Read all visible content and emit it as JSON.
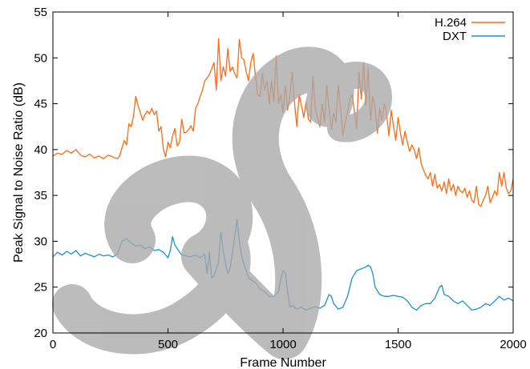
{
  "chart_data": {
    "type": "line",
    "xlabel": "Frame Number",
    "ylabel": "Peak Signal to Noise Ratio (dB)",
    "xlim": [
      0,
      2000
    ],
    "ylim": [
      20,
      55
    ],
    "xticks": [
      0,
      500,
      1000,
      1500,
      2000
    ],
    "yticks": [
      20,
      25,
      30,
      35,
      40,
      45,
      50,
      55
    ],
    "grid": false,
    "legend_position": "top-right",
    "series": [
      {
        "name": "H.264",
        "color": "#ff6a13",
        "x": [
          0,
          20,
          40,
          60,
          80,
          100,
          120,
          140,
          160,
          180,
          200,
          220,
          240,
          260,
          280,
          290,
          300,
          310,
          320,
          330,
          340,
          350,
          360,
          370,
          380,
          390,
          400,
          410,
          420,
          430,
          440,
          450,
          460,
          470,
          480,
          490,
          500,
          510,
          520,
          530,
          540,
          550,
          560,
          570,
          580,
          590,
          600,
          610,
          620,
          630,
          640,
          650,
          660,
          670,
          680,
          690,
          700,
          710,
          720,
          730,
          740,
          750,
          760,
          770,
          780,
          790,
          800,
          810,
          820,
          830,
          840,
          850,
          860,
          870,
          880,
          890,
          900,
          910,
          920,
          930,
          940,
          950,
          960,
          970,
          980,
          990,
          1000,
          1010,
          1020,
          1030,
          1040,
          1050,
          1060,
          1070,
          1080,
          1090,
          1100,
          1110,
          1120,
          1130,
          1140,
          1150,
          1160,
          1170,
          1180,
          1190,
          1200,
          1210,
          1220,
          1230,
          1240,
          1250,
          1260,
          1270,
          1280,
          1290,
          1300,
          1310,
          1320,
          1330,
          1340,
          1350,
          1360,
          1370,
          1380,
          1390,
          1400,
          1410,
          1420,
          1430,
          1440,
          1450,
          1460,
          1470,
          1480,
          1490,
          1500,
          1510,
          1520,
          1530,
          1540,
          1550,
          1560,
          1570,
          1580,
          1590,
          1600,
          1610,
          1620,
          1630,
          1640,
          1650,
          1660,
          1670,
          1680,
          1690,
          1700,
          1710,
          1720,
          1730,
          1740,
          1750,
          1760,
          1770,
          1780,
          1790,
          1800,
          1810,
          1820,
          1830,
          1840,
          1850,
          1860,
          1870,
          1880,
          1890,
          1900,
          1910,
          1920,
          1930,
          1940,
          1950,
          1960,
          1970,
          1980,
          1990,
          2000
        ],
        "values": [
          39.3,
          39.6,
          39.5,
          39.9,
          39.6,
          40.0,
          39.4,
          39.2,
          39.5,
          39.1,
          39.3,
          39.0,
          39.4,
          39.2,
          39.0,
          39.3,
          40.2,
          41.0,
          40.5,
          42.8,
          42.5,
          43.6,
          45.8,
          44.8,
          44.0,
          43.2,
          43.8,
          44.2,
          43.9,
          44.5,
          43.8,
          44.2,
          42.0,
          42.5,
          40.0,
          39.2,
          40.8,
          40.2,
          41.5,
          42.3,
          40.4,
          40.8,
          43.3,
          41.8,
          41.9,
          42.2,
          42.6,
          42.0,
          44.5,
          45.0,
          45.8,
          46.5,
          47.5,
          47.8,
          48.2,
          48.8,
          49.5,
          46.5,
          52.1,
          47.5,
          49.0,
          48.0,
          51.0,
          48.5,
          49.0,
          48.3,
          47.8,
          52.0,
          50.0,
          49.8,
          48.5,
          47.5,
          49.5,
          50.5,
          48.0,
          46.0,
          45.8,
          48.3,
          46.5,
          47.5,
          45.0,
          47.5,
          45.2,
          50.2,
          45.0,
          46.0,
          44.0,
          47.0,
          44.3,
          45.8,
          48.5,
          45.0,
          42.5,
          46.0,
          44.8,
          43.5,
          45.2,
          43.3,
          43.0,
          48.0,
          44.5,
          43.5,
          42.5,
          45.0,
          43.0,
          47.0,
          44.5,
          42.2,
          44.0,
          43.0,
          47.0,
          44.5,
          41.5,
          43.0,
          44.0,
          45.5,
          46.0,
          44.2,
          42.3,
          48.5,
          45.5,
          49.5,
          44.8,
          48.8,
          43.2,
          45.8,
          44.5,
          41.8,
          44.5,
          43.2,
          45.0,
          44.0,
          41.5,
          44.3,
          42.5,
          41.0,
          43.5,
          41.8,
          40.5,
          42.0,
          40.8,
          39.8,
          40.5,
          40.0,
          39.0,
          40.2,
          38.5,
          37.8,
          37.2,
          36.8,
          37.5,
          36.0,
          37.3,
          35.8,
          36.2,
          35.5,
          36.5,
          35.2,
          36.8,
          35.5,
          36.2,
          35.0,
          36.0,
          35.5,
          35.3,
          35.8,
          34.8,
          35.5,
          34.5,
          34.2,
          36.0,
          34.0,
          33.8,
          34.5,
          35.0,
          36.0,
          34.2,
          34.8,
          35.5,
          35.0,
          37.5,
          36.0,
          37.5,
          35.8,
          35.2,
          35.5,
          36.8
        ]
      },
      {
        "name": "DXT",
        "color": "#1f91d0",
        "x": [
          0,
          20,
          40,
          60,
          80,
          100,
          120,
          140,
          160,
          180,
          200,
          220,
          240,
          260,
          280,
          300,
          320,
          340,
          360,
          380,
          400,
          420,
          440,
          460,
          480,
          500,
          510,
          520,
          530,
          540,
          560,
          580,
          600,
          620,
          640,
          660,
          670,
          680,
          690,
          700,
          710,
          720,
          730,
          740,
          750,
          760,
          770,
          780,
          790,
          800,
          810,
          820,
          830,
          840,
          850,
          860,
          880,
          900,
          920,
          940,
          960,
          980,
          990,
          1000,
          1010,
          1020,
          1030,
          1040,
          1060,
          1080,
          1100,
          1120,
          1140,
          1160,
          1180,
          1200,
          1210,
          1220,
          1240,
          1260,
          1280,
          1300,
          1320,
          1340,
          1360,
          1370,
          1380,
          1390,
          1400,
          1420,
          1440,
          1460,
          1480,
          1500,
          1520,
          1540,
          1560,
          1580,
          1600,
          1620,
          1640,
          1660,
          1680,
          1690,
          1700,
          1720,
          1740,
          1760,
          1780,
          1800,
          1820,
          1840,
          1860,
          1880,
          1900,
          1920,
          1940,
          1960,
          1980,
          2000
        ],
        "values": [
          28.3,
          28.8,
          28.5,
          28.9,
          28.6,
          29.0,
          28.4,
          28.7,
          28.5,
          28.3,
          28.6,
          28.4,
          28.5,
          28.3,
          28.6,
          30.0,
          30.3,
          29.8,
          29.5,
          29.6,
          29.2,
          29.4,
          29.0,
          29.1,
          28.8,
          28.2,
          29.0,
          30.5,
          29.6,
          29.2,
          28.5,
          28.4,
          28.3,
          28.5,
          28.2,
          28.6,
          26.5,
          28.8,
          26.0,
          26.2,
          27.0,
          27.8,
          31.0,
          29.0,
          27.5,
          26.5,
          27.0,
          28.8,
          30.5,
          32.4,
          30.0,
          28.5,
          27.5,
          26.8,
          26.0,
          25.8,
          25.5,
          24.8,
          24.5,
          24.0,
          24.0,
          24.5,
          25.8,
          26.8,
          26.5,
          24.5,
          22.8,
          23.0,
          22.6,
          22.8,
          22.5,
          22.7,
          22.9,
          22.7,
          23.0,
          24.2,
          24.0,
          23.2,
          22.6,
          22.8,
          24.0,
          26.0,
          26.8,
          27.0,
          27.2,
          27.4,
          27.2,
          26.5,
          25.0,
          24.2,
          24.0,
          24.0,
          24.1,
          24.0,
          23.9,
          23.5,
          22.8,
          22.5,
          23.0,
          23.2,
          23.2,
          23.8,
          25.0,
          25.2,
          24.2,
          24.0,
          23.5,
          23.2,
          23.5,
          23.0,
          22.5,
          22.6,
          22.8,
          23.2,
          23.0,
          23.5,
          24.0,
          23.6,
          23.8,
          23.5
        ]
      }
    ]
  },
  "watermark": {
    "color": "#a9a9a9",
    "shape": "calligraphic-brush-stroke"
  }
}
